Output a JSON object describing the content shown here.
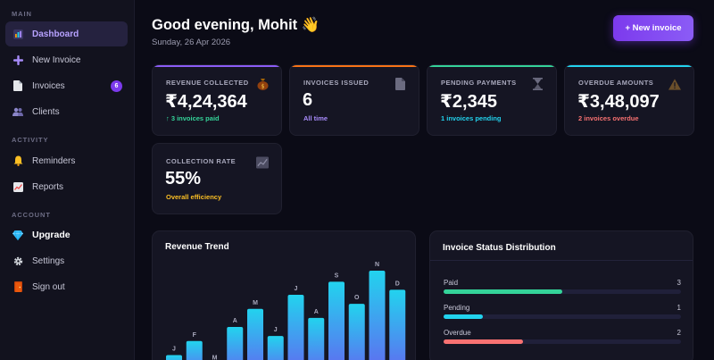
{
  "sidebar": {
    "sections": [
      {
        "label": "MAIN",
        "items": [
          {
            "label": "Dashboard",
            "icon": "dashboard-icon",
            "active": true
          },
          {
            "label": "New Invoice",
            "icon": "plus-icon"
          },
          {
            "label": "Invoices",
            "icon": "document-icon",
            "badge": "6"
          },
          {
            "label": "Clients",
            "icon": "users-icon"
          }
        ]
      },
      {
        "label": "ACTIVITY",
        "items": [
          {
            "label": "Reminders",
            "icon": "bell-icon"
          },
          {
            "label": "Reports",
            "icon": "chart-icon"
          }
        ]
      },
      {
        "label": "ACCOUNT",
        "items": [
          {
            "label": "Upgrade",
            "icon": "diamond-icon"
          },
          {
            "label": "Settings",
            "icon": "gear-icon"
          },
          {
            "label": "Sign out",
            "icon": "door-icon"
          }
        ]
      }
    ]
  },
  "header": {
    "greeting": "Good evening, Mohit 👋",
    "date": "Sunday, 26 Apr 2026",
    "new_invoice_label": "+ New invoice"
  },
  "stats": [
    {
      "label": "REVENUE COLLECTED",
      "value": "₹4,24,364",
      "sub": "↑ 3 invoices paid",
      "sub_color": "#34d399",
      "accent": "#8b5cf6",
      "icon": "money-bag-icon"
    },
    {
      "label": "INVOICES ISSUED",
      "value": "6",
      "sub": "All time",
      "sub_color": "#a78bfa",
      "accent": "#f97316",
      "icon": "document-icon"
    },
    {
      "label": "PENDING PAYMENTS",
      "value": "₹2,345",
      "sub": "1 invoices pending",
      "sub_color": "#22d3ee",
      "accent": "#34d399",
      "icon": "hourglass-icon"
    },
    {
      "label": "OVERDUE AMOUNTS",
      "value": "₹3,48,097",
      "sub": "2 invoices overdue",
      "sub_color": "#f87171",
      "accent": "#22d3ee",
      "icon": "warning-icon"
    },
    {
      "label": "COLLECTION RATE",
      "value": "55%",
      "sub": "Overall efficiency",
      "sub_color": "#fbbf24",
      "accent": "#151523",
      "icon": "trend-chart-icon"
    }
  ],
  "revenue_trend": {
    "title": "Revenue Trend",
    "chart_data": {
      "type": "bar",
      "categories": [
        "J",
        "F",
        "M",
        "A",
        "M",
        "J",
        "J",
        "A",
        "S",
        "O",
        "N",
        "D"
      ],
      "values": [
        12,
        26,
        3,
        40,
        58,
        31,
        72,
        49,
        85,
        63,
        96,
        77
      ]
    }
  },
  "status_distribution": {
    "title": "Invoice Status Distribution",
    "rows": [
      {
        "label": "Paid",
        "count": "3",
        "fraction": 0.5,
        "color": "#34d399"
      },
      {
        "label": "Pending",
        "count": "1",
        "fraction": 0.167,
        "color": "#22d3ee"
      },
      {
        "label": "Overdue",
        "count": "2",
        "fraction": 0.333,
        "color": "#f87171"
      }
    ]
  }
}
